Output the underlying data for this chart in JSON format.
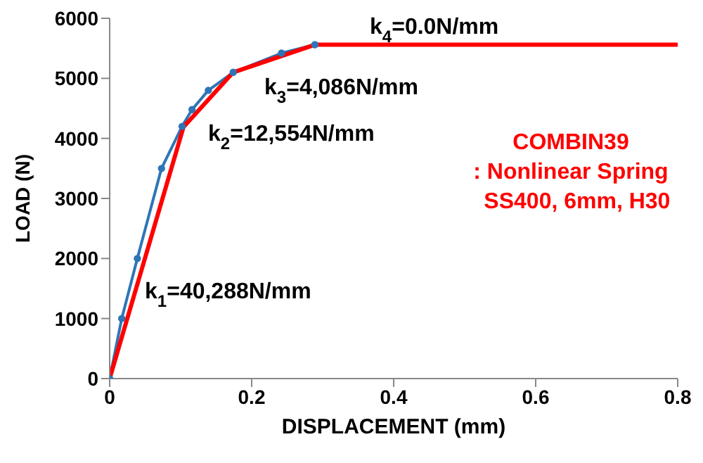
{
  "chart_data": {
    "type": "line",
    "xlabel": "DISPLACEMENT (mm)",
    "ylabel": "LOAD (N)",
    "xlim": [
      0,
      0.8
    ],
    "xticks": [
      0,
      0.2,
      0.4,
      0.6,
      0.8
    ],
    "ylim": [
      0,
      6000
    ],
    "yticks": [
      0,
      1000,
      2000,
      3000,
      4000,
      5000,
      6000
    ],
    "series": [
      {
        "color": "#2e75b6",
        "marker": "circle",
        "x": [
          0,
          0.017,
          0.039,
          0.073,
          0.102,
          0.116,
          0.139,
          0.174,
          0.242,
          0.289
        ],
        "values": [
          0,
          1000,
          2000,
          3500,
          4200,
          4480,
          4800,
          5100,
          5420,
          5560
        ]
      },
      {
        "color": "#ff0000",
        "marker": "none",
        "x": [
          0,
          0.104,
          0.174,
          0.289,
          0.8
        ],
        "values": [
          0,
          4190,
          5100,
          5560,
          5560
        ]
      }
    ],
    "annotations": [
      "k$_{1}$=40,288N/mm",
      "k$_{2}$=12,554N/mm",
      "k$_{3}$=4,086N/mm",
      "k$_{4}$=0.0N/mm",
      "COMBIN39\n: Nonlinear Spring\n  SS400, 6mm, H30"
    ]
  }
}
